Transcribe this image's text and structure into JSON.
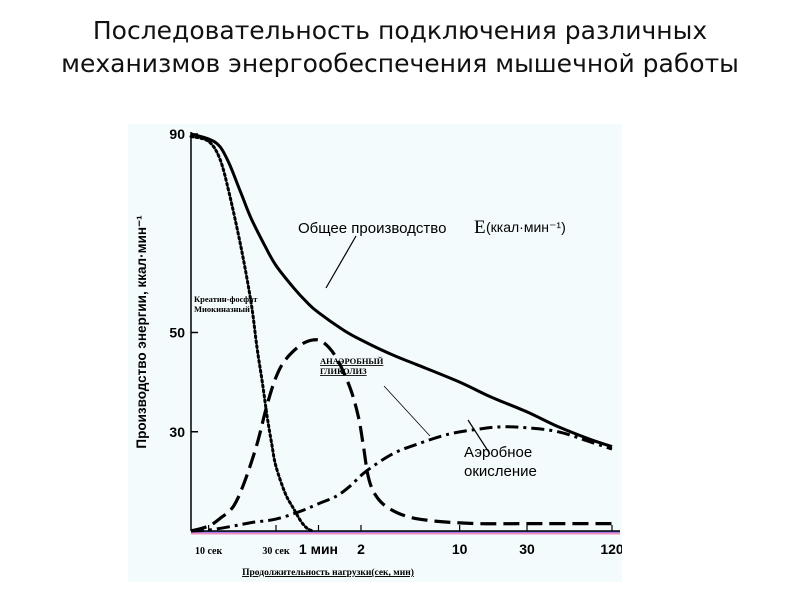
{
  "slide": {
    "title_line1": "Последовательность подключения различных",
    "title_line2": "механизмов энергообеспечения мышечной работы"
  },
  "chart_data": {
    "type": "line",
    "title": "",
    "xlabel": "Продолжительность нагрузки(сек, мин)",
    "ylabel": "Производство энергии, ккал·мин⁻¹",
    "x_scale": "log",
    "x_unit": "seconds",
    "xlim": [
      7.5,
      7200
    ],
    "ylim": [
      10,
      90
    ],
    "y_ticks": [
      {
        "value": 90,
        "label": "90"
      },
      {
        "value": 50,
        "label": "50"
      },
      {
        "value": 30,
        "label": "30"
      }
    ],
    "x_ticks": [
      {
        "value": 10,
        "label": "10 сек"
      },
      {
        "value": 30,
        "label": "30 сек"
      },
      {
        "value": 60,
        "label": "1 мин"
      },
      {
        "value": 120,
        "label": "2"
      },
      {
        "value": 600,
        "label": "10"
      },
      {
        "value": 1800,
        "label": "30"
      },
      {
        "value": 7200,
        "label": "120"
      }
    ],
    "grid": false,
    "series": [
      {
        "name": "Общее производство",
        "label_extra": "(ккал·мин⁻¹)",
        "label_symbol": "E",
        "style": "solid",
        "color": "#000000",
        "points": [
          [
            7.5,
            90
          ],
          [
            10,
            89
          ],
          [
            12,
            87.5
          ],
          [
            14,
            84
          ],
          [
            17,
            78
          ],
          [
            20,
            73
          ],
          [
            25,
            67.5
          ],
          [
            30,
            63.5
          ],
          [
            40,
            59
          ],
          [
            50,
            56
          ],
          [
            60,
            54
          ],
          [
            90,
            50.5
          ],
          [
            120,
            48.5
          ],
          [
            200,
            45.5
          ],
          [
            300,
            43.5
          ],
          [
            600,
            40
          ],
          [
            1000,
            37
          ],
          [
            1800,
            34
          ],
          [
            3000,
            31
          ],
          [
            5000,
            28.5
          ],
          [
            7200,
            27
          ]
        ]
      },
      {
        "name": "Креатин-фосфат Миокиназный",
        "style": "dotted",
        "color": "#000000",
        "points": [
          [
            7.5,
            89.5
          ],
          [
            10,
            88.5
          ],
          [
            12,
            85
          ],
          [
            14,
            78
          ],
          [
            17,
            67
          ],
          [
            20,
            56
          ],
          [
            22,
            47
          ],
          [
            24,
            40
          ],
          [
            26,
            33
          ],
          [
            28,
            27.5
          ],
          [
            30,
            23
          ],
          [
            35,
            17.5
          ],
          [
            40,
            14.5
          ],
          [
            45,
            12
          ],
          [
            50,
            10.5
          ],
          [
            55,
            10
          ]
        ]
      },
      {
        "name": "АНАЭРОБНЫЙ ГЛИКОЛИЗ",
        "style": "dashed",
        "color": "#000000",
        "points": [
          [
            7.5,
            10
          ],
          [
            10,
            11
          ],
          [
            12,
            12.5
          ],
          [
            15,
            15
          ],
          [
            18,
            20
          ],
          [
            22,
            27.5
          ],
          [
            26,
            35.5
          ],
          [
            30,
            41
          ],
          [
            35,
            44.5
          ],
          [
            45,
            47.5
          ],
          [
            55,
            48.5
          ],
          [
            65,
            48
          ],
          [
            80,
            45
          ],
          [
            100,
            39
          ],
          [
            115,
            33
          ],
          [
            125,
            27
          ],
          [
            135,
            21
          ],
          [
            150,
            17.5
          ],
          [
            180,
            15
          ],
          [
            250,
            13
          ],
          [
            400,
            12
          ],
          [
            800,
            11.5
          ],
          [
            2000,
            11.5
          ],
          [
            7200,
            11.5
          ]
        ]
      },
      {
        "name": "Аэробное окисление",
        "style": "dashdot",
        "color": "#000000",
        "points": [
          [
            7.5,
            10
          ],
          [
            10,
            10.2
          ],
          [
            15,
            11
          ],
          [
            20,
            11.7
          ],
          [
            30,
            12.4
          ],
          [
            45,
            14
          ],
          [
            60,
            15.5
          ],
          [
            80,
            17
          ],
          [
            100,
            19
          ],
          [
            130,
            22
          ],
          [
            200,
            25.5
          ],
          [
            300,
            27.5
          ],
          [
            500,
            29.5
          ],
          [
            800,
            30.5
          ],
          [
            1200,
            31
          ],
          [
            1800,
            30.8
          ],
          [
            3000,
            30
          ],
          [
            5000,
            28
          ],
          [
            7200,
            26.5
          ]
        ]
      }
    ],
    "annotations": [
      "Креатин-фосфат",
      "Миокиназный",
      "АНАЭРОБНЫЙ",
      "ГЛИКОЛИЗ",
      "Аэробное",
      "окисление",
      "Общее производство"
    ],
    "baseline_colors": [
      "#5a6cff",
      "#f08cc0"
    ]
  }
}
